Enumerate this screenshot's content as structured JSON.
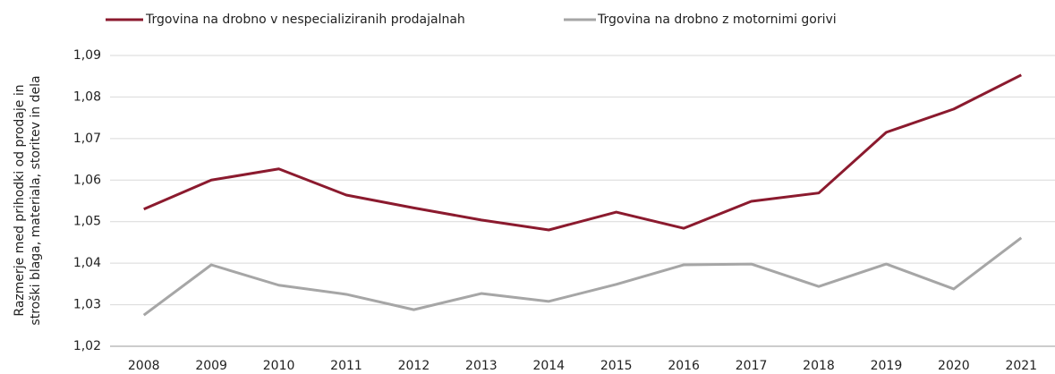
{
  "chart_data": {
    "type": "line",
    "ylabel": [
      "Razmerje med prihodki od prodaje in",
      "stroški blaga, materiala, storitev in dela"
    ],
    "categories": [
      "2008",
      "2009",
      "2010",
      "2011",
      "2012",
      "2013",
      "2014",
      "2015",
      "2016",
      "2017",
      "2018",
      "2019",
      "2020",
      "2021"
    ],
    "series": [
      {
        "name": "Trgovina na drobno v nespecializiranih prodajalnah",
        "color": "#8b1a2e",
        "values": [
          1.053,
          1.06,
          1.0627,
          1.0564,
          1.0533,
          1.0504,
          1.048,
          1.0523,
          1.0484,
          1.0549,
          1.0569,
          1.0715,
          1.0771,
          1.0853
        ]
      },
      {
        "name": "Trgovina na drobno z motornimi gorivi",
        "color": "#a6a6a6",
        "values": [
          1.0275,
          1.0396,
          1.0347,
          1.0325,
          1.0288,
          1.0327,
          1.0308,
          1.0349,
          1.0396,
          1.0398,
          1.0344,
          1.0398,
          1.0338,
          1.0461
        ]
      }
    ],
    "ylim": [
      1.02,
      1.09
    ],
    "yticks": [
      {
        "value": 1.02,
        "label": "1,02"
      },
      {
        "value": 1.03,
        "label": "1,03"
      },
      {
        "value": 1.04,
        "label": "1,04"
      },
      {
        "value": 1.05,
        "label": "1,05"
      },
      {
        "value": 1.06,
        "label": "1,06"
      },
      {
        "value": 1.07,
        "label": "1,07"
      },
      {
        "value": 1.08,
        "label": "1,08"
      },
      {
        "value": 1.09,
        "label": "1,09"
      }
    ],
    "grid": true
  }
}
